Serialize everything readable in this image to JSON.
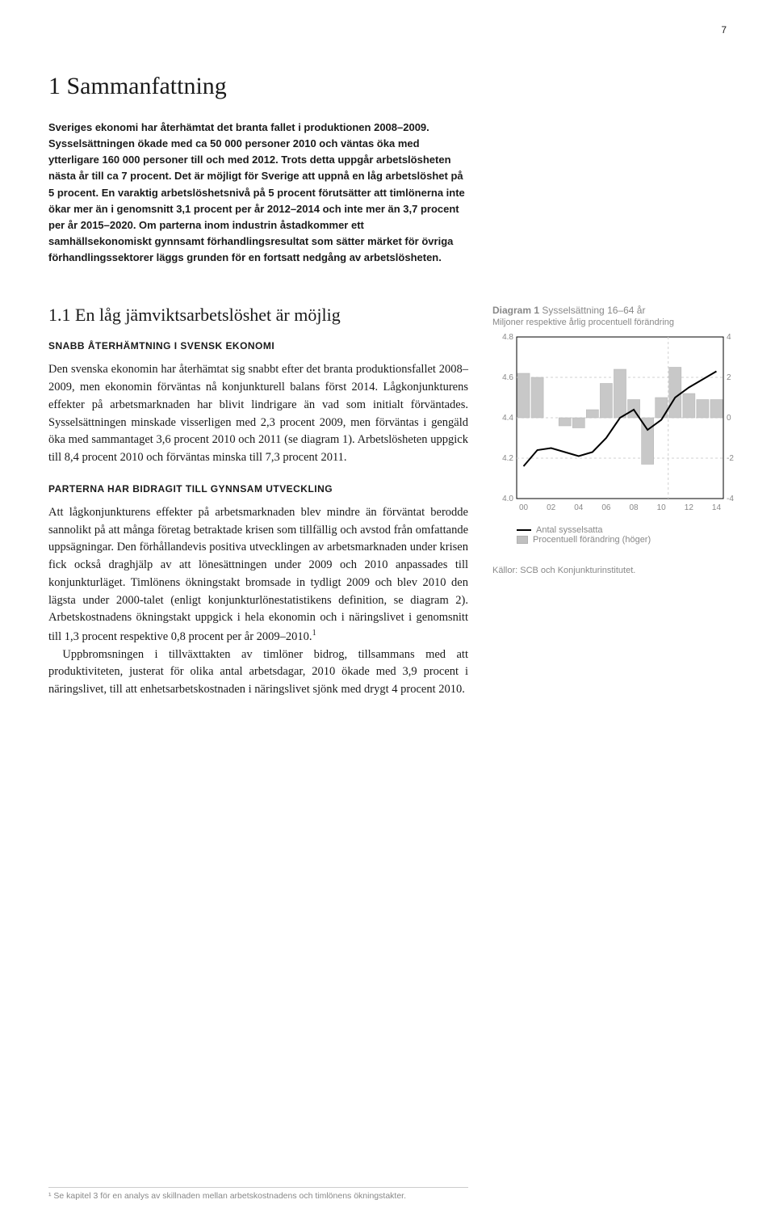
{
  "page_number": "7",
  "h1": "1 Sammanfattning",
  "lead": "Sveriges ekonomi har återhämtat det branta fallet i produktionen 2008–2009. Sysselsättningen ökade med ca 50 000 personer 2010 och väntas öka med ytterligare 160 000 personer till och med 2012. Trots detta uppgår arbetslösheten nästa år till ca 7 procent. Det är möjligt för Sverige att uppnå en låg arbetslöshet på 5 procent. En varaktig arbetslöshetsnivå på 5 procent förutsätter att timlönerna inte ökar mer än i genomsnitt 3,1 procent per år 2012–2014 och inte mer än 3,7 procent per år 2015–2020. Om parterna inom industrin åstadkommer ett samhällsekonomiskt gynnsamt förhandlingsresultat som sätter märket för övriga förhandlingssektorer läggs grunden för en fortsatt nedgång av arbetslösheten.",
  "section": {
    "h2": "1.1 En låg jämviktsarbetslöshet är möjlig",
    "h3a": "SNABB ÅTERHÄMTNING I SVENSK EKONOMI",
    "p1": "Den svenska ekonomin har återhämtat sig snabbt efter det branta produktionsfallet 2008–2009, men ekonomin förväntas nå konjunkturell balans först 2014. Lågkonjunkturens effekter på arbetsmarknaden har blivit lindrigare än vad som initialt förväntades. Sysselsättningen minskade visserligen med 2,3 procent 2009, men förväntas i gengäld öka med sammantaget 3,6 procent 2010 och 2011 (se diagram 1). Arbetslösheten uppgick till 8,4 procent 2010 och förväntas minska till 7,3 procent 2011.",
    "h3b": "PARTERNA HAR BIDRAGIT TILL GYNNSAM UTVECKLING",
    "p2_part1": "Att lågkonjunkturens effekter på arbetsmarknaden blev mindre än förväntat berodde sannolikt på att många företag betraktade krisen som tillfällig och avstod från omfattande uppsägningar. Den förhållandevis positiva utvecklingen av arbetsmarknaden under krisen fick också draghjälp av att lönesättningen under 2009 och 2010 anpassades till konjunkturläget. Timlönens ökningstakt bromsade in tydligt 2009 och blev 2010 den lägsta under 2000-talet (enligt konjunkturlönestatistikens definition, se diagram 2). Arbetskostnadens ökningstakt uppgick i hela ekonomin och i näringslivet i genomsnitt till 1,3 procent respektive 0,8 procent per år 2009–2010.",
    "p2_part2": "Uppbromsningen i tillväxttakten av timlöner bidrog, tillsammans med att produktiviteten, justerat för olika antal arbetsdagar, 2010 ökade med 3,9 procent i näringslivet, till att enhetsarbetskostnaden i näringslivet sjönk med drygt 4 procent 2010."
  },
  "chart": {
    "title_prefix": "Diagram 1 ",
    "title": "Sysselsättning 16–64 år",
    "subtitle": "Miljoner respektive årlig procentuell förändring",
    "left_axis": {
      "min": 4.0,
      "max": 4.8,
      "ticks": [
        4.0,
        4.2,
        4.4,
        4.6,
        4.8
      ]
    },
    "right_axis": {
      "min": -4,
      "max": 4,
      "ticks": [
        -4,
        -2,
        0,
        2,
        4
      ]
    },
    "x_ticks": [
      "00",
      "02",
      "04",
      "06",
      "08",
      "10",
      "12",
      "14"
    ],
    "bars_years": [
      2000,
      2001,
      2002,
      2003,
      2004,
      2005,
      2006,
      2007,
      2008,
      2009,
      2010,
      2011,
      2012,
      2013,
      2014
    ],
    "bars_values": [
      2.2,
      2.0,
      0.0,
      -0.4,
      -0.5,
      0.4,
      1.7,
      2.4,
      0.9,
      -2.3,
      1.0,
      2.5,
      1.2,
      0.9,
      0.9
    ],
    "bar_color": "#c8c8c8",
    "bar_border": "#b8b8b8",
    "line_values": [
      4.16,
      4.24,
      4.25,
      4.23,
      4.21,
      4.23,
      4.3,
      4.4,
      4.44,
      4.34,
      4.39,
      4.5,
      4.55,
      4.59,
      4.63
    ],
    "line_color": "#000000",
    "grid_color": "#d0d0d0",
    "axis_color": "#000000",
    "background": "#ffffff",
    "divider_x_index": 11,
    "legend": {
      "line": "Antal sysselsatta",
      "bar": "Procentuell förändring (höger)"
    },
    "source": "Källor: SCB och Konjunkturinstitutet."
  },
  "footnote": "¹ Se kapitel 3 för en analys av skillnaden mellan arbetskostnadens och timlönens ökningstakter."
}
